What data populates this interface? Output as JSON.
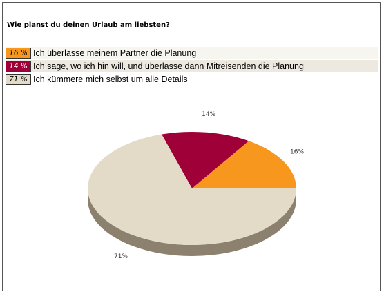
{
  "chart_data": {
    "type": "pie",
    "title": "Wie planst du deinen Urlaub am liebsten?",
    "slices": [
      {
        "label": "Ich überlasse meinem Partner die Planung",
        "value": 16,
        "legend_value": "16 %",
        "slice_label": "16%",
        "color": "#f7971e",
        "shade": "#b86e10"
      },
      {
        "label": "Ich sage, wo ich hin will, und überlasse dann Mitreisenden die Planung",
        "value": 14,
        "legend_value": "14 %",
        "slice_label": "14%",
        "color": "#a00038",
        "shade": "#6a0025"
      },
      {
        "label": "Ich kümmere mich selbst um alle Details",
        "value": 71,
        "legend_value": "71 %",
        "slice_label": "71%",
        "color": "#e3dac8",
        "shade": "#8c806e"
      }
    ],
    "legend_placement": "top"
  }
}
